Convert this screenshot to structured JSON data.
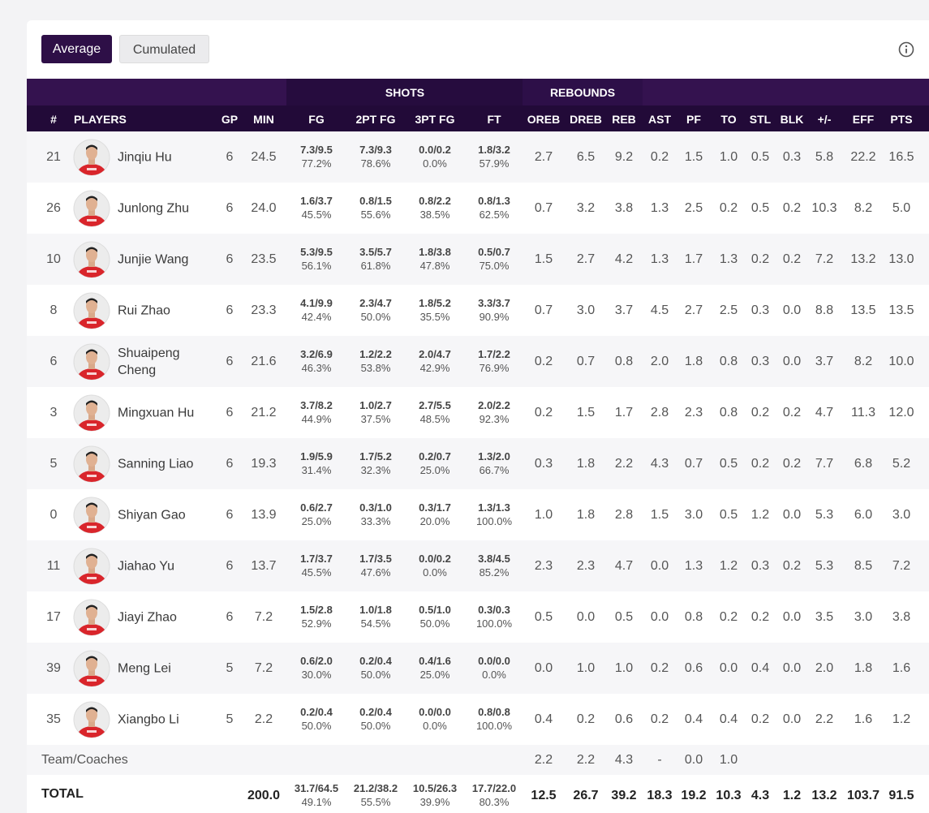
{
  "buttons": [
    "Average",
    "Cumulated"
  ],
  "table": {
    "groups": [
      "SHOTS",
      "REBOUNDS"
    ],
    "columns": [
      "#",
      "PLAYERS",
      "GP",
      "MIN",
      "FG",
      "2PT FG",
      "3PT FG",
      "FT",
      "OREB",
      "DREB",
      "REB",
      "AST",
      "PF",
      "TO",
      "STL",
      "BLK",
      "+/-",
      "EFF",
      "PTS"
    ],
    "rows": [
      [
        "21",
        "Jinqiu Hu",
        "6",
        "24.5",
        [
          "7.3/9.5",
          "77.2%"
        ],
        [
          "7.3/9.3",
          "78.6%"
        ],
        [
          "0.0/0.2",
          "0.0%"
        ],
        [
          "1.8/3.2",
          "57.9%"
        ],
        "2.7",
        "6.5",
        "9.2",
        "0.2",
        "1.5",
        "1.0",
        "0.5",
        "0.3",
        "5.8",
        "22.2",
        "16.5"
      ],
      [
        "26",
        "Junlong Zhu",
        "6",
        "24.0",
        [
          "1.6/3.7",
          "45.5%"
        ],
        [
          "0.8/1.5",
          "55.6%"
        ],
        [
          "0.8/2.2",
          "38.5%"
        ],
        [
          "0.8/1.3",
          "62.5%"
        ],
        "0.7",
        "3.2",
        "3.8",
        "1.3",
        "2.5",
        "0.2",
        "0.5",
        "0.2",
        "10.3",
        "8.2",
        "5.0"
      ],
      [
        "10",
        "Junjie Wang",
        "6",
        "23.5",
        [
          "5.3/9.5",
          "56.1%"
        ],
        [
          "3.5/5.7",
          "61.8%"
        ],
        [
          "1.8/3.8",
          "47.8%"
        ],
        [
          "0.5/0.7",
          "75.0%"
        ],
        "1.5",
        "2.7",
        "4.2",
        "1.3",
        "1.7",
        "1.3",
        "0.2",
        "0.2",
        "7.2",
        "13.2",
        "13.0"
      ],
      [
        "8",
        "Rui Zhao",
        "6",
        "23.3",
        [
          "4.1/9.9",
          "42.4%"
        ],
        [
          "2.3/4.7",
          "50.0%"
        ],
        [
          "1.8/5.2",
          "35.5%"
        ],
        [
          "3.3/3.7",
          "90.9%"
        ],
        "0.7",
        "3.0",
        "3.7",
        "4.5",
        "2.7",
        "2.5",
        "0.3",
        "0.0",
        "8.8",
        "13.5",
        "13.5"
      ],
      [
        "6",
        "Shuaipeng Cheng",
        "6",
        "21.6",
        [
          "3.2/6.9",
          "46.3%"
        ],
        [
          "1.2/2.2",
          "53.8%"
        ],
        [
          "2.0/4.7",
          "42.9%"
        ],
        [
          "1.7/2.2",
          "76.9%"
        ],
        "0.2",
        "0.7",
        "0.8",
        "2.0",
        "1.8",
        "0.8",
        "0.3",
        "0.0",
        "3.7",
        "8.2",
        "10.0"
      ],
      [
        "3",
        "Mingxuan Hu",
        "6",
        "21.2",
        [
          "3.7/8.2",
          "44.9%"
        ],
        [
          "1.0/2.7",
          "37.5%"
        ],
        [
          "2.7/5.5",
          "48.5%"
        ],
        [
          "2.0/2.2",
          "92.3%"
        ],
        "0.2",
        "1.5",
        "1.7",
        "2.8",
        "2.3",
        "0.8",
        "0.2",
        "0.2",
        "4.7",
        "11.3",
        "12.0"
      ],
      [
        "5",
        "Sanning Liao",
        "6",
        "19.3",
        [
          "1.9/5.9",
          "31.4%"
        ],
        [
          "1.7/5.2",
          "32.3%"
        ],
        [
          "0.2/0.7",
          "25.0%"
        ],
        [
          "1.3/2.0",
          "66.7%"
        ],
        "0.3",
        "1.8",
        "2.2",
        "4.3",
        "0.7",
        "0.5",
        "0.2",
        "0.2",
        "7.7",
        "6.8",
        "5.2"
      ],
      [
        "0",
        "Shiyan Gao",
        "6",
        "13.9",
        [
          "0.6/2.7",
          "25.0%"
        ],
        [
          "0.3/1.0",
          "33.3%"
        ],
        [
          "0.3/1.7",
          "20.0%"
        ],
        [
          "1.3/1.3",
          "100.0%"
        ],
        "1.0",
        "1.8",
        "2.8",
        "1.5",
        "3.0",
        "0.5",
        "1.2",
        "0.0",
        "5.3",
        "6.0",
        "3.0"
      ],
      [
        "11",
        "Jiahao Yu",
        "6",
        "13.7",
        [
          "1.7/3.7",
          "45.5%"
        ],
        [
          "1.7/3.5",
          "47.6%"
        ],
        [
          "0.0/0.2",
          "0.0%"
        ],
        [
          "3.8/4.5",
          "85.2%"
        ],
        "2.3",
        "2.3",
        "4.7",
        "0.0",
        "1.3",
        "1.2",
        "0.3",
        "0.2",
        "5.3",
        "8.5",
        "7.2"
      ],
      [
        "17",
        "Jiayi Zhao",
        "6",
        "7.2",
        [
          "1.5/2.8",
          "52.9%"
        ],
        [
          "1.0/1.8",
          "54.5%"
        ],
        [
          "0.5/1.0",
          "50.0%"
        ],
        [
          "0.3/0.3",
          "100.0%"
        ],
        "0.5",
        "0.0",
        "0.5",
        "0.0",
        "0.8",
        "0.2",
        "0.2",
        "0.0",
        "3.5",
        "3.0",
        "3.8"
      ],
      [
        "39",
        "Meng Lei",
        "5",
        "7.2",
        [
          "0.6/2.0",
          "30.0%"
        ],
        [
          "0.2/0.4",
          "50.0%"
        ],
        [
          "0.4/1.6",
          "25.0%"
        ],
        [
          "0.0/0.0",
          "0.0%"
        ],
        "0.0",
        "1.0",
        "1.0",
        "0.2",
        "0.6",
        "0.0",
        "0.4",
        "0.0",
        "2.0",
        "1.8",
        "1.6"
      ],
      [
        "35",
        "Xiangbo Li",
        "5",
        "2.2",
        [
          "0.2/0.4",
          "50.0%"
        ],
        [
          "0.2/0.4",
          "50.0%"
        ],
        [
          "0.0/0.0",
          "0.0%"
        ],
        [
          "0.8/0.8",
          "100.0%"
        ],
        "0.4",
        "0.2",
        "0.6",
        "0.2",
        "0.4",
        "0.4",
        "0.2",
        "0.0",
        "2.2",
        "1.6",
        "1.2"
      ]
    ],
    "team_row": [
      "Team/Coaches",
      null,
      null,
      null,
      null,
      null,
      null,
      null,
      "2.2",
      "2.2",
      "4.3",
      "-",
      "0.0",
      "1.0",
      null,
      null,
      null,
      null,
      null
    ],
    "total_row": [
      "TOTAL",
      null,
      null,
      "200.0",
      [
        "31.7/64.5",
        "49.1%"
      ],
      [
        "21.2/38.2",
        "55.5%"
      ],
      [
        "10.5/26.3",
        "39.9%"
      ],
      [
        "17.7/22.0",
        "80.3%"
      ],
      "12.5",
      "26.7",
      "39.2",
      "18.3",
      "19.2",
      "10.3",
      "4.3",
      "1.2",
      "13.2",
      "103.7",
      "91.5"
    ]
  }
}
